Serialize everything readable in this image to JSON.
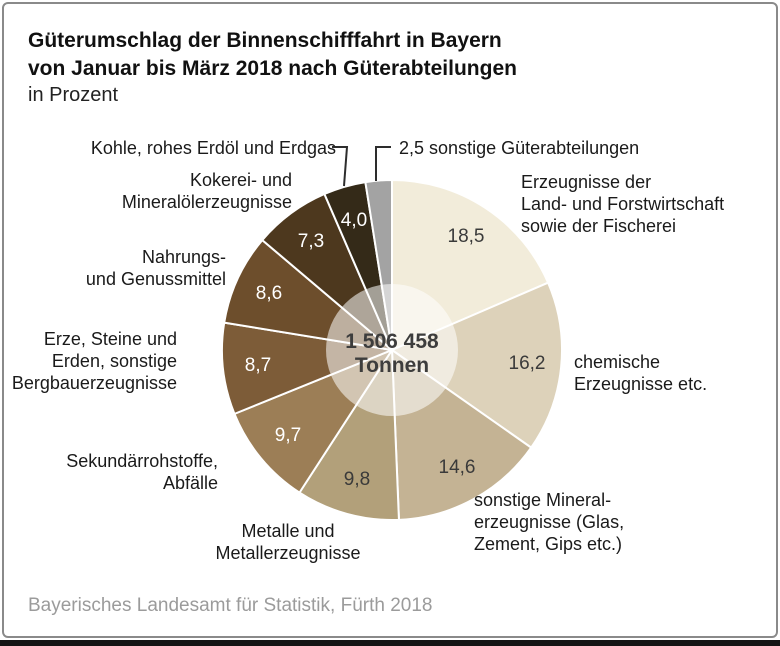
{
  "chart_data": {
    "type": "pie",
    "title_line1": "Güterumschlag der Binnenschifffahrt in Bayern",
    "title_line2": "von Januar bis März 2018 nach Güterabteilungen",
    "unit_label": "in Prozent",
    "center": {
      "line1": "1 506 458",
      "line2": "Tonnen"
    },
    "source": "Bayerisches Landesamt für Statistik, Fürth 2018",
    "start_angle_deg": 0,
    "clockwise": true,
    "legend_position": "around",
    "separator_color": "#ffffff",
    "slices": [
      {
        "label": "Erzeugnisse der\nLand- und Forstwirtschaft\nsowie der Fischerei",
        "value": 18.5,
        "value_label": "18,5",
        "color": "#f2ecda",
        "text": "dark"
      },
      {
        "label": "chemische\nErzeugnisse etc.",
        "value": 16.2,
        "value_label": "16,2",
        "color": "#ddd2ba",
        "text": "dark"
      },
      {
        "label": "sonstige Mineral-\nerzeugnisse (Glas,\nZement, Gips etc.)",
        "value": 14.6,
        "value_label": "14,6",
        "color": "#c4b394",
        "text": "dark"
      },
      {
        "label": "Metalle und\nMetallerzeugnisse",
        "value": 9.8,
        "value_label": "9,8",
        "color": "#b2a07a",
        "text": "dark"
      },
      {
        "label": "Sekundärrohstoffe,\nAbfälle",
        "value": 9.7,
        "value_label": "9,7",
        "color": "#9c7e56",
        "text": "light"
      },
      {
        "label": "Erze, Steine und\nErden, sonstige\nBergbauerzeugnisse",
        "value": 8.7,
        "value_label": "8,7",
        "color": "#7d5c38",
        "text": "light"
      },
      {
        "label": "Nahrungs-\nund Genussmittel",
        "value": 8.6,
        "value_label": "8,6",
        "color": "#6d4e2c",
        "text": "light"
      },
      {
        "label": "Kokerei- und\nMineralölerzeugnisse",
        "value": 7.3,
        "value_label": "7,3",
        "color": "#4d381e",
        "text": "light"
      },
      {
        "label": "Kohle, rohes Erdöl und Erdgas",
        "value": 4.0,
        "value_label": "4,0",
        "color": "#342a18",
        "text": "light"
      },
      {
        "label": "sonstige Güterabteilungen",
        "value": 2.5,
        "value_label": "2,5",
        "color": "#a3a3a3",
        "text": "dark"
      }
    ]
  }
}
